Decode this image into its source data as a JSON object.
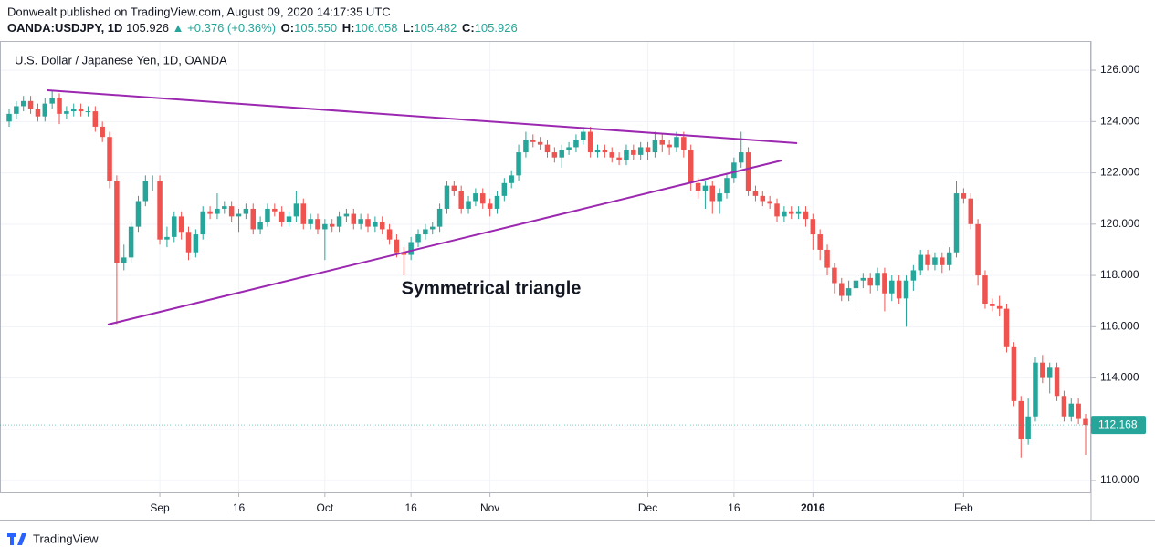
{
  "header": {
    "published": "Donwealt published on TradingView.com, August 09, 2020 14:17:35 UTC",
    "symbol": "OANDA:USDJPY, 1D",
    "price": "105.926",
    "arrow": "▲",
    "change": "+0.376 (+0.36%)",
    "o_label": "O:",
    "o": "105.550",
    "h_label": "H:",
    "h": "106.058",
    "l_label": "L:",
    "l": "105.482",
    "c_label": "C:",
    "c": "105.926"
  },
  "chart_data": {
    "type": "candlestick",
    "title": "U.S. Dollar / Japanese Yen, 1D, OANDA",
    "categories": [
      null,
      null,
      null,
      null,
      null,
      null,
      null,
      null,
      null,
      null,
      null,
      null,
      null,
      null,
      null,
      null,
      null,
      null,
      null,
      null,
      null,
      "Sep",
      null,
      null,
      null,
      null,
      null,
      null,
      null,
      null,
      null,
      null,
      "16",
      null,
      null,
      null,
      null,
      null,
      null,
      null,
      null,
      null,
      null,
      null,
      "Oct",
      null,
      null,
      null,
      null,
      null,
      null,
      null,
      null,
      null,
      null,
      null,
      "16",
      null,
      null,
      null,
      null,
      null,
      null,
      null,
      null,
      null,
      null,
      "Nov",
      null,
      null,
      null,
      null,
      null,
      null,
      null,
      null,
      null,
      null,
      null,
      null,
      null,
      null,
      null,
      null,
      null,
      null,
      null,
      null,
      null,
      "Dec",
      null,
      null,
      null,
      null,
      null,
      null,
      null,
      null,
      null,
      null,
      null,
      "16",
      null,
      null,
      null,
      null,
      null,
      null,
      null,
      null,
      null,
      null,
      "2016",
      null,
      null,
      null,
      null,
      null,
      null,
      null,
      null,
      null,
      null,
      null,
      null,
      null,
      null,
      null,
      null,
      null,
      null,
      null,
      null,
      "Feb",
      null,
      null,
      null,
      null,
      null,
      null,
      null,
      null,
      null,
      null,
      null,
      null,
      null,
      null,
      null,
      null,
      null
    ],
    "open": [
      124.0,
      124.3,
      124.6,
      124.8,
      124.5,
      124.2,
      124.7,
      124.9,
      124.3,
      124.4,
      124.5,
      124.4,
      124.4,
      123.8,
      123.4,
      121.7,
      118.5,
      118.7,
      119.9,
      120.9,
      121.7,
      121.7,
      119.4,
      119.5,
      120.3,
      119.7,
      118.9,
      119.6,
      120.5,
      120.4,
      120.6,
      120.7,
      120.3,
      120.4,
      120.6,
      119.8,
      120.1,
      120.6,
      120.5,
      120.1,
      120.3,
      120.8,
      120.0,
      120.2,
      119.8,
      120.0,
      119.9,
      120.3,
      120.4,
      120.0,
      120.2,
      119.9,
      120.1,
      119.8,
      119.4,
      118.9,
      118.8,
      119.3,
      119.6,
      119.8,
      119.9,
      120.6,
      121.5,
      121.3,
      120.6,
      120.9,
      121.2,
      120.8,
      120.6,
      121.1,
      121.6,
      121.9,
      122.8,
      123.3,
      123.2,
      123.1,
      122.8,
      122.6,
      122.9,
      123.0,
      123.3,
      123.6,
      122.8,
      122.9,
      122.8,
      122.6,
      122.5,
      122.9,
      122.7,
      123.0,
      122.8,
      123.3,
      123.1,
      123.0,
      123.4,
      122.9,
      121.6,
      121.3,
      121.5,
      120.9,
      121.2,
      121.8,
      122.4,
      122.8,
      121.3,
      121.1,
      120.9,
      120.8,
      120.3,
      120.5,
      120.4,
      120.5,
      120.2,
      119.6,
      119.0,
      118.3,
      117.7,
      117.2,
      117.5,
      117.8,
      117.9,
      117.6,
      118.1,
      117.3,
      117.8,
      117.1,
      117.8,
      118.2,
      118.8,
      118.4,
      118.7,
      118.4,
      118.9,
      121.2,
      121.0,
      120.0,
      118.0,
      116.9,
      116.8,
      116.7,
      115.2,
      113.1,
      111.6,
      112.5,
      114.6,
      114.0,
      114.4,
      113.3,
      112.5,
      113.0,
      112.4
    ],
    "high": [
      124.5,
      124.8,
      125.0,
      125.0,
      124.7,
      124.9,
      125.2,
      125.1,
      124.6,
      124.7,
      124.7,
      124.6,
      124.6,
      124.0,
      123.6,
      121.9,
      119.2,
      120.1,
      121.1,
      121.9,
      121.9,
      121.9,
      119.9,
      120.5,
      120.5,
      119.9,
      119.8,
      120.7,
      120.7,
      121.2,
      120.9,
      120.9,
      120.6,
      120.8,
      120.8,
      120.3,
      120.8,
      120.8,
      120.7,
      120.5,
      121.3,
      121.0,
      120.4,
      120.4,
      120.2,
      120.2,
      120.5,
      120.6,
      120.6,
      120.4,
      120.4,
      120.3,
      120.3,
      120.0,
      119.6,
      119.1,
      119.5,
      119.8,
      120.0,
      120.1,
      120.8,
      121.7,
      121.7,
      121.5,
      121.1,
      121.4,
      121.4,
      121.0,
      121.3,
      121.8,
      122.1,
      123.1,
      123.6,
      123.5,
      123.4,
      123.3,
      123.0,
      123.1,
      123.2,
      123.5,
      123.8,
      123.8,
      123.1,
      123.1,
      123.0,
      122.8,
      123.1,
      123.1,
      123.2,
      123.2,
      123.6,
      123.5,
      123.3,
      123.6,
      123.6,
      123.1,
      121.8,
      121.7,
      121.7,
      121.4,
      122.0,
      122.6,
      123.6,
      123.0,
      121.5,
      121.3,
      121.1,
      121.0,
      120.7,
      120.7,
      120.7,
      120.7,
      120.4,
      119.8,
      119.2,
      118.5,
      117.9,
      117.8,
      118.0,
      118.1,
      118.1,
      118.3,
      118.3,
      118.0,
      118.0,
      118.0,
      118.4,
      119.0,
      119.0,
      118.9,
      118.9,
      119.1,
      121.7,
      121.4,
      121.2,
      120.2,
      118.2,
      117.1,
      117.2,
      116.9,
      115.4,
      113.3,
      113.2,
      114.8,
      114.9,
      114.6,
      114.6,
      113.5,
      113.2,
      113.2,
      112.6
    ],
    "low": [
      123.8,
      124.1,
      124.4,
      124.3,
      124.0,
      124.0,
      124.5,
      123.9,
      124.1,
      124.2,
      124.2,
      124.2,
      123.6,
      123.2,
      121.4,
      116.1,
      118.2,
      118.5,
      119.7,
      120.7,
      121.3,
      119.2,
      119.1,
      119.3,
      119.4,
      118.6,
      118.7,
      119.4,
      120.2,
      120.2,
      120.4,
      120.1,
      119.7,
      120.2,
      119.6,
      119.6,
      119.9,
      120.3,
      119.9,
      119.9,
      120.1,
      119.8,
      119.8,
      119.6,
      118.6,
      119.7,
      119.7,
      120.1,
      119.8,
      119.8,
      119.7,
      119.7,
      119.6,
      119.2,
      118.7,
      118.0,
      118.6,
      119.1,
      119.4,
      119.6,
      119.7,
      120.4,
      121.1,
      120.4,
      120.4,
      120.7,
      120.6,
      120.3,
      120.4,
      120.9,
      121.4,
      121.7,
      122.6,
      123.0,
      122.9,
      122.6,
      122.4,
      122.2,
      122.7,
      122.8,
      123.1,
      122.6,
      122.6,
      122.6,
      122.4,
      122.3,
      122.3,
      122.5,
      122.5,
      122.5,
      122.6,
      122.8,
      122.7,
      122.8,
      122.6,
      121.3,
      121.0,
      120.6,
      120.4,
      120.4,
      121.0,
      121.6,
      122.2,
      121.1,
      120.9,
      120.7,
      120.6,
      120.1,
      120.1,
      120.2,
      120.2,
      119.9,
      119.0,
      118.6,
      118.0,
      117.3,
      117.0,
      117.0,
      116.7,
      117.5,
      117.3,
      117.4,
      116.6,
      117.0,
      116.9,
      116.0,
      117.4,
      118.0,
      118.2,
      118.2,
      118.1,
      118.2,
      118.7,
      120.8,
      119.8,
      117.6,
      116.7,
      116.6,
      116.4,
      115.0,
      112.9,
      110.9,
      111.4,
      112.3,
      113.8,
      113.4,
      113.1,
      112.3,
      112.3,
      112.2,
      111.0
    ],
    "close": [
      124.3,
      124.6,
      124.8,
      124.5,
      124.2,
      124.7,
      124.9,
      124.3,
      124.4,
      124.5,
      124.4,
      124.4,
      123.8,
      123.4,
      121.7,
      118.5,
      118.7,
      119.9,
      120.9,
      121.7,
      121.7,
      119.4,
      119.5,
      120.3,
      119.7,
      118.9,
      119.6,
      120.5,
      120.4,
      120.6,
      120.7,
      120.3,
      120.4,
      120.6,
      119.8,
      120.1,
      120.6,
      120.5,
      120.1,
      120.3,
      120.8,
      120.0,
      120.2,
      119.8,
      120.0,
      119.9,
      120.3,
      120.4,
      120.0,
      120.2,
      119.9,
      120.1,
      119.8,
      119.4,
      118.9,
      118.8,
      119.3,
      119.6,
      119.8,
      119.9,
      120.6,
      121.5,
      121.3,
      120.6,
      120.9,
      121.2,
      120.8,
      120.6,
      121.1,
      121.6,
      121.9,
      122.8,
      123.3,
      123.2,
      123.1,
      122.8,
      122.6,
      122.9,
      123.0,
      123.3,
      123.6,
      122.8,
      122.9,
      122.8,
      122.6,
      122.5,
      122.9,
      122.7,
      123.0,
      122.8,
      123.3,
      123.1,
      123.0,
      123.4,
      122.9,
      121.6,
      121.3,
      121.5,
      120.9,
      121.2,
      121.8,
      122.4,
      122.8,
      121.3,
      121.1,
      120.9,
      120.8,
      120.3,
      120.5,
      120.4,
      120.5,
      120.2,
      119.6,
      119.0,
      118.3,
      117.7,
      117.2,
      117.5,
      117.8,
      117.9,
      117.6,
      118.1,
      117.3,
      117.8,
      117.1,
      117.8,
      118.2,
      118.8,
      118.4,
      118.7,
      118.4,
      118.9,
      121.2,
      121.0,
      120.0,
      118.0,
      116.9,
      116.8,
      116.7,
      115.2,
      113.1,
      111.6,
      112.5,
      114.6,
      114.0,
      114.4,
      113.3,
      112.5,
      113.0,
      112.4,
      112.168
    ],
    "up_color": "#26a69a",
    "down_color": "#ef5350",
    "last_price_color": "#26a69a",
    "ylim": [
      109.54,
      127.14
    ],
    "yticks": [
      {
        "value": 110,
        "label": "110.000"
      },
      {
        "value": 112,
        "label": "112.000"
      },
      {
        "value": 114,
        "label": "114.000"
      },
      {
        "value": 116,
        "label": "116.000"
      },
      {
        "value": 118,
        "label": "118.000"
      },
      {
        "value": 120,
        "label": "120.000"
      },
      {
        "value": 122,
        "label": "122.000"
      },
      {
        "value": 124,
        "label": "124.000"
      },
      {
        "value": 126,
        "label": "126.000"
      }
    ],
    "grid": true,
    "annotation": "Symmetrical triangle"
  },
  "footer": {
    "brand": "TradingView"
  }
}
